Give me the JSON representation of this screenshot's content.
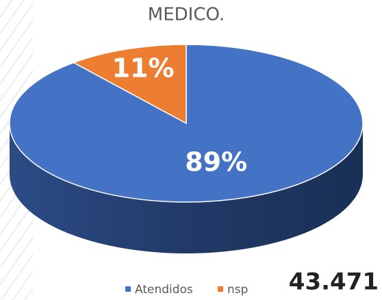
{
  "chart_data": {
    "type": "pie",
    "title": "MEDICO.",
    "categories": [
      "Atendidos",
      "nsp"
    ],
    "values": [
      89,
      11
    ],
    "value_labels": [
      "89%",
      "11%"
    ],
    "colors": [
      "#4472c4",
      "#ed7d31"
    ],
    "annotation": "43.471"
  }
}
